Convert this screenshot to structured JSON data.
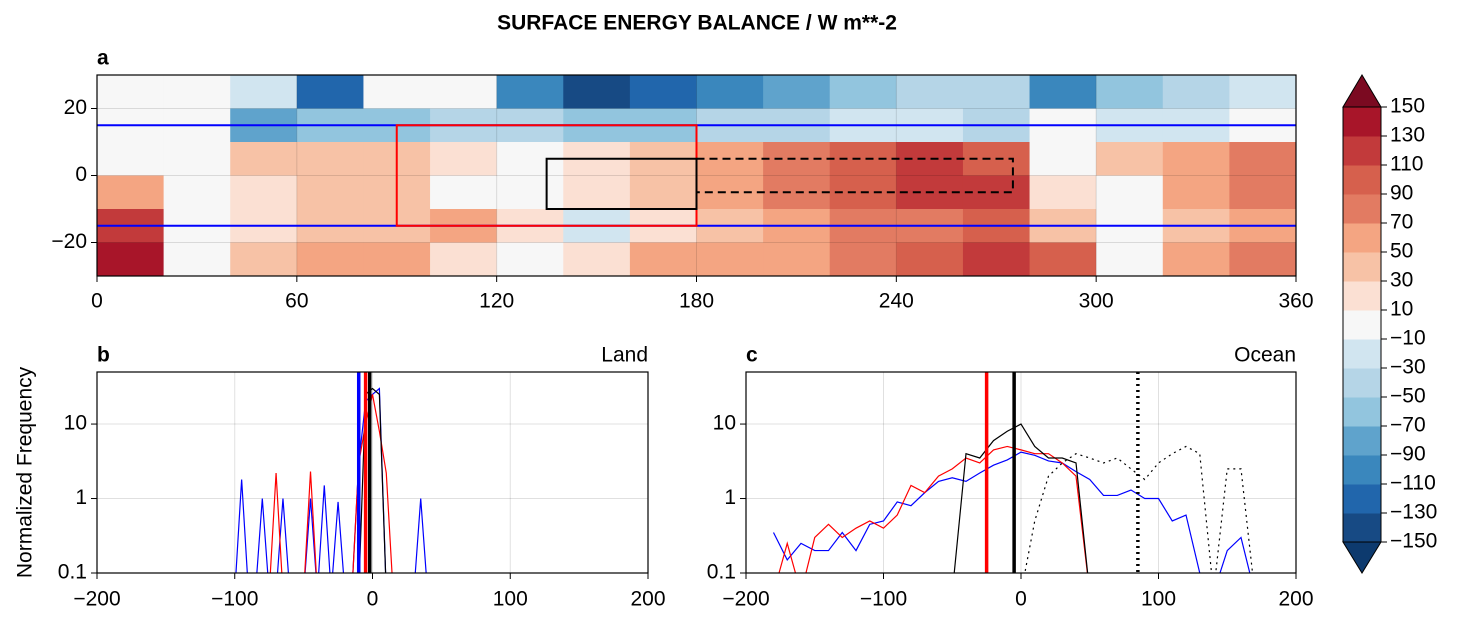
{
  "title": "SURFACE ENERGY BALANCE / W m**-2",
  "chart_data": [
    {
      "type": "contourf",
      "panel_label": "a",
      "xlim": [
        0,
        360
      ],
      "xticks": [
        0,
        60,
        120,
        180,
        240,
        300,
        360
      ],
      "ylim": [
        -30,
        30
      ],
      "yticks": [
        20,
        0,
        {
          "value": -20,
          "label": "−20"
        }
      ],
      "grid": true,
      "x": [
        10,
        30,
        50,
        70,
        90,
        110,
        130,
        150,
        170,
        190,
        210,
        230,
        250,
        270,
        290,
        310,
        330,
        350
      ],
      "y": [
        25,
        15,
        5,
        -5,
        -15,
        -25
      ],
      "z": [
        [
          -10,
          -10,
          -30,
          -130,
          -10,
          -10,
          -110,
          -150,
          -130,
          -110,
          -90,
          -70,
          -50,
          -50,
          -110,
          -70,
          -50,
          -30
        ],
        [
          -10,
          -10,
          -90,
          -70,
          -70,
          -50,
          -50,
          -70,
          -70,
          -50,
          -50,
          -30,
          -30,
          -50,
          -10,
          -30,
          -30,
          -10
        ],
        [
          -10,
          -10,
          30,
          30,
          30,
          10,
          -10,
          10,
          30,
          50,
          70,
          90,
          110,
          90,
          -10,
          30,
          50,
          70
        ],
        [
          50,
          -10,
          10,
          30,
          30,
          -10,
          -10,
          10,
          30,
          50,
          70,
          90,
          110,
          110,
          10,
          -10,
          50,
          70
        ],
        [
          110,
          -10,
          10,
          30,
          30,
          50,
          10,
          -30,
          10,
          30,
          50,
          70,
          70,
          90,
          30,
          -10,
          30,
          50
        ],
        [
          130,
          -10,
          30,
          50,
          50,
          10,
          -10,
          10,
          50,
          50,
          50,
          70,
          90,
          110,
          90,
          -10,
          50,
          70
        ]
      ],
      "hlines": [
        {
          "value": 15,
          "color": "#0000ff"
        },
        {
          "value": -15,
          "color": "#0000ff"
        }
      ],
      "boxes": [
        {
          "lon": [
            90,
            180
          ],
          "lat": [
            -15,
            15
          ],
          "color": "#ff0000",
          "linestyle": "solid"
        },
        {
          "lon": [
            135,
            180
          ],
          "lat": [
            -10,
            5
          ],
          "color": "#000000",
          "linestyle": "solid"
        },
        {
          "lon": [
            180,
            275
          ],
          "lat": [
            -5,
            5
          ],
          "color": "#000000",
          "linestyle": "dashed"
        }
      ],
      "colorbar": {
        "ticks": [
          {
            "value": -150,
            "label": "−150"
          },
          {
            "value": -130,
            "label": "−130"
          },
          {
            "value": -110,
            "label": "−110"
          },
          {
            "value": -90,
            "label": "−90"
          },
          {
            "value": -70,
            "label": "−70"
          },
          {
            "value": -50,
            "label": "−50"
          },
          {
            "value": -30,
            "label": "−30"
          },
          {
            "value": -10,
            "label": "−10"
          },
          10,
          30,
          50,
          70,
          90,
          110,
          130,
          150
        ],
        "colors": [
          "#174a84",
          "#2166ac",
          "#3a87bd",
          "#5fa3cc",
          "#92c5de",
          "#b5d5e7",
          "#d1e5f0",
          "#f7f7f7",
          "#fbe0d3",
          "#f7c2a6",
          "#f4a582",
          "#e27b62",
          "#d6604d",
          "#c23a3b",
          "#a81529"
        ],
        "extend_colors": [
          "#0d3a6e",
          "#7b0a21"
        ]
      }
    },
    {
      "type": "line",
      "panel_label": "b",
      "title": "Land",
      "ylabel": "Normalized Frequency",
      "xlim": [
        -200,
        200
      ],
      "xticks": [
        {
          "value": -200,
          "label": "−200"
        },
        {
          "value": -100,
          "label": "−100"
        },
        0,
        100,
        200
      ],
      "ylim": [
        0.1,
        50
      ],
      "yticks": [
        0.1,
        1,
        10
      ],
      "log_y": true,
      "grid": true,
      "x": [
        -100,
        -95,
        -90,
        -85,
        -80,
        -75,
        -70,
        -65,
        -60,
        -55,
        -50,
        -45,
        -40,
        -35,
        -30,
        -25,
        -20,
        -15,
        -10,
        -5,
        0,
        5,
        10,
        15,
        20,
        25,
        30,
        35,
        40
      ],
      "series": [
        {
          "color": "#0000ff",
          "linestyle": "solid",
          "values": [
            0,
            1.8,
            0,
            0,
            1.0,
            0,
            0,
            1.0,
            0,
            0,
            0,
            1.0,
            0,
            1.5,
            0,
            0.9,
            0,
            0,
            3,
            20,
            25,
            30,
            0,
            0,
            0,
            0,
            0,
            1.0,
            0
          ]
        },
        {
          "color": "#ff0000",
          "linestyle": "solid",
          "values": [
            0,
            0,
            0,
            0,
            0,
            0,
            2.2,
            0,
            0,
            0,
            0,
            2.3,
            0,
            0,
            0,
            0,
            0,
            0,
            3,
            10,
            25,
            8,
            2.2,
            0,
            0,
            0,
            0,
            0,
            0
          ]
        },
        {
          "color": "#000000",
          "linestyle": "solid",
          "values": [
            0,
            0,
            0,
            0,
            0,
            0,
            0,
            0,
            0,
            0,
            0,
            0,
            0,
            0,
            0,
            0,
            0,
            0,
            0,
            25,
            30,
            25,
            0,
            0,
            0,
            0,
            0,
            0,
            0
          ]
        }
      ],
      "vlines": [
        {
          "value": -10,
          "color": "#0000ff",
          "linestyle": "solid"
        },
        {
          "value": -5,
          "color": "#ff0000",
          "linestyle": "solid"
        },
        {
          "value": -2,
          "color": "#000000",
          "linestyle": "solid"
        }
      ]
    },
    {
      "type": "line",
      "panel_label": "c",
      "title": "Ocean",
      "xlim": [
        -200,
        200
      ],
      "xticks": [
        {
          "value": -200,
          "label": "−200"
        },
        {
          "value": -100,
          "label": "−100"
        },
        0,
        100,
        200
      ],
      "ylim": [
        0.1,
        50
      ],
      "yticks": [
        0.1,
        1,
        10
      ],
      "log_y": true,
      "grid": true,
      "x": [
        -180,
        -170,
        -160,
        -150,
        -140,
        -130,
        -120,
        -110,
        -100,
        -90,
        -80,
        -70,
        -60,
        -50,
        -40,
        -30,
        -20,
        -10,
        0,
        10,
        20,
        30,
        40,
        50,
        60,
        70,
        80,
        90,
        100,
        110,
        120,
        130,
        140,
        150,
        160,
        170
      ],
      "series": [
        {
          "color": "#0000ff",
          "linestyle": "solid",
          "values": [
            0.35,
            0.15,
            0.25,
            0.2,
            0.2,
            0.35,
            0.2,
            0.45,
            0.5,
            0.9,
            0.8,
            1.2,
            1.7,
            1.9,
            1.7,
            2.2,
            2.8,
            3.3,
            4.2,
            3.8,
            3.2,
            3.0,
            2.3,
            1.8,
            1.1,
            1.1,
            1.3,
            1.0,
            1.0,
            0.5,
            0.6,
            0.1,
            0,
            0.2,
            0.3,
            0
          ]
        },
        {
          "color": "#ff0000",
          "linestyle": "solid",
          "values": [
            0,
            0.25,
            0,
            0.3,
            0.45,
            0.3,
            0.4,
            0.5,
            0.4,
            0.6,
            1.5,
            1.2,
            2,
            2.5,
            3.5,
            3,
            4.5,
            5,
            4.5,
            4,
            4,
            3,
            2,
            0,
            0,
            0,
            0,
            0,
            0,
            0,
            0,
            0,
            0,
            0,
            0,
            0
          ]
        },
        {
          "color": "#000000",
          "linestyle": "solid",
          "values": [
            0,
            0,
            0,
            0,
            0,
            0,
            0,
            0,
            0,
            0,
            0,
            0,
            0,
            0,
            4,
            3.5,
            6,
            8,
            10,
            5,
            3.5,
            3.5,
            3,
            0,
            0,
            0,
            0,
            0,
            0,
            0,
            0,
            0,
            0,
            0,
            0,
            0
          ]
        },
        {
          "color": "#000000",
          "linestyle": "dotted",
          "values": [
            0,
            0,
            0,
            0,
            0,
            0,
            0,
            0,
            0,
            0,
            0,
            0,
            0,
            0,
            0,
            0,
            0,
            0,
            0,
            0.5,
            2,
            3,
            4,
            3.5,
            3,
            3.5,
            2.5,
            1.8,
            3,
            4,
            5,
            4,
            0,
            2.5,
            2.5,
            0
          ]
        }
      ],
      "vlines": [
        {
          "value": -25,
          "color": "#ff0000",
          "linestyle": "solid"
        },
        {
          "value": -5,
          "color": "#000000",
          "linestyle": "solid"
        },
        {
          "value": 85,
          "color": "#000000",
          "linestyle": "dotted"
        }
      ]
    }
  ]
}
